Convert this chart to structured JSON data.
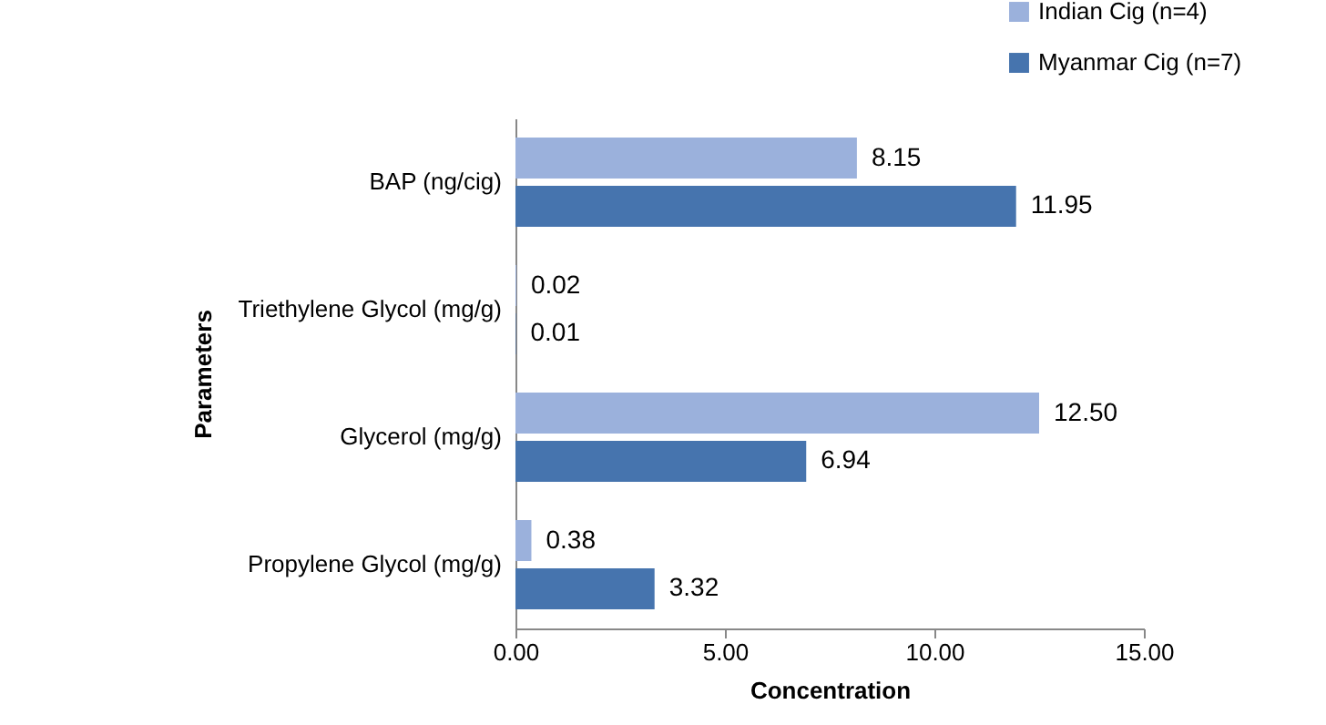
{
  "chart_data": {
    "type": "bar",
    "orientation": "horizontal",
    "xlabel": "Concentration",
    "ylabel": "Parameters",
    "legend": "top right",
    "categories": [
      "BAP (ng/cig)",
      "Triethylene Glycol (mg/g)",
      "Glycerol (mg/g)",
      "Propylene Glycol (mg/g)"
    ],
    "series": [
      {
        "name": "Indian Cig (n=4)",
        "color": "#9bb1dc",
        "values": [
          8.15,
          0.02,
          12.5,
          0.38
        ],
        "value_labels": [
          "8.15",
          "0.02",
          "12.50",
          "0.38"
        ]
      },
      {
        "name": "Myanmar Cig (n=7)",
        "color": "#4674ae",
        "values": [
          11.95,
          0.01,
          6.94,
          3.32
        ],
        "value_labels": [
          "11.95",
          "0.01",
          "6.94",
          "3.32"
        ]
      }
    ],
    "xlim": [
      0,
      15
    ],
    "xticks": [
      {
        "value": 0,
        "label": "0.00"
      },
      {
        "value": 5,
        "label": "5.00"
      },
      {
        "value": 10,
        "label": "10.00"
      },
      {
        "value": 15,
        "label": "15.00"
      }
    ]
  }
}
